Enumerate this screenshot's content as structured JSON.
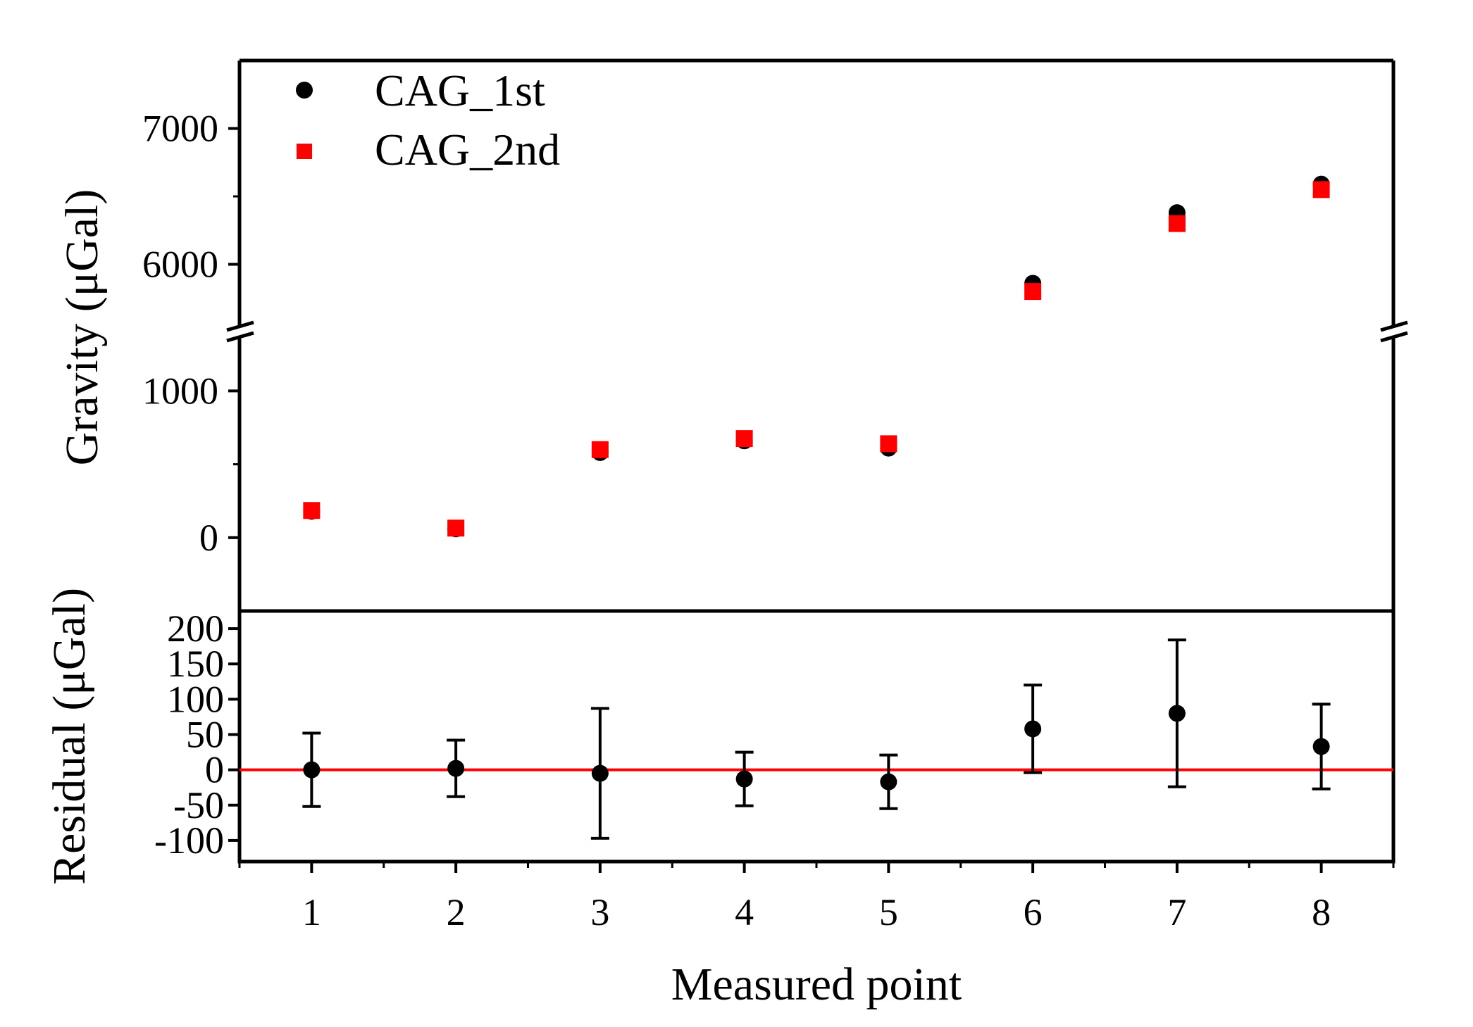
{
  "chart_data": [
    {
      "type": "scatter",
      "panel": "top",
      "ylabel": "Gravity (μGal)",
      "y_axis_break": [
        1400,
        5500
      ],
      "ylim_lower": [
        -500,
        1400
      ],
      "ylim_upper": [
        5500,
        7500
      ],
      "yticks": [
        0,
        1000,
        6000,
        7000
      ],
      "ytick_labels": [
        "0",
        "1000",
        "6000",
        "7000"
      ],
      "legend": {
        "position": "top-left"
      },
      "series": [
        {
          "name": "CAG_1st",
          "marker": "circle",
          "color": "#000000",
          "x": [
            1,
            2,
            3,
            4,
            5,
            6,
            7,
            8
          ],
          "y": [
            180,
            60,
            580,
            660,
            610,
            5860,
            6380,
            6590
          ]
        },
        {
          "name": "CAG_2nd",
          "marker": "square",
          "color": "#ff0000",
          "x": [
            1,
            2,
            3,
            4,
            5,
            6,
            7,
            8
          ],
          "y": [
            185,
            65,
            600,
            675,
            640,
            5800,
            6300,
            6550
          ]
        }
      ]
    },
    {
      "type": "scatter",
      "panel": "bottom",
      "ylabel": "Residual (μGal)",
      "xlabel": "Measured point",
      "xlim": [
        0.5,
        8.5
      ],
      "xticks": [
        1,
        2,
        3,
        4,
        5,
        6,
        7,
        8
      ],
      "xtick_labels": [
        "1",
        "2",
        "3",
        "4",
        "5",
        "6",
        "7",
        "8"
      ],
      "ylim": [
        -130,
        225
      ],
      "yticks": [
        -100,
        -50,
        0,
        50,
        100,
        150,
        200
      ],
      "ytick_labels": [
        "-100",
        "-50",
        "0",
        "50",
        "100",
        "150",
        "200"
      ],
      "reference_line": {
        "y": 0,
        "color": "#ff0000"
      },
      "series": [
        {
          "name": "Residual",
          "color": "#000000",
          "x": [
            1,
            2,
            3,
            4,
            5,
            6,
            7,
            8
          ],
          "y": [
            0,
            2,
            -5,
            -13,
            -17,
            58,
            80,
            33
          ],
          "err": [
            52,
            40,
            92,
            38,
            38,
            62,
            104,
            60
          ]
        }
      ]
    }
  ]
}
